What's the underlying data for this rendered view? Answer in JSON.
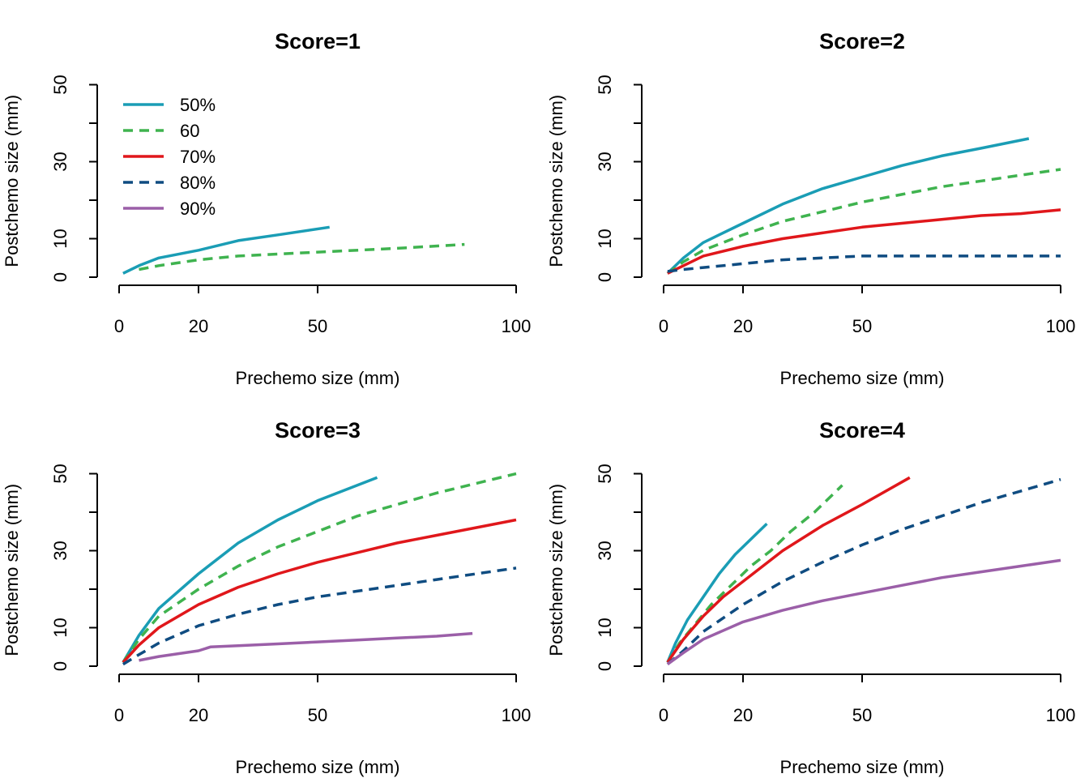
{
  "chart_data": [
    {
      "type": "line",
      "title": "Score=1",
      "xlabel": "Prechemo size (mm)",
      "ylabel": "Postchemo size (mm)",
      "xticks": [
        0,
        20,
        50,
        100
      ],
      "yticks": [
        0,
        10,
        30,
        50
      ],
      "ylim": [
        0,
        50
      ],
      "legend_position": "top-left",
      "series": [
        {
          "name": "50%",
          "color": "#1a9db5",
          "dash": "solid",
          "x": [
            1,
            5,
            10,
            20,
            30,
            40,
            53
          ],
          "y": [
            1,
            3,
            5,
            7,
            9.5,
            11,
            13
          ]
        },
        {
          "name": "60",
          "color": "#3fb34f",
          "dash": "dashed",
          "x": [
            5,
            10,
            20,
            30,
            50,
            70,
            87
          ],
          "y": [
            2,
            3,
            4.5,
            5.5,
            6.5,
            7.5,
            8.5
          ]
        }
      ],
      "legend": [
        {
          "label": "50%",
          "color": "#1a9db5",
          "dash": "solid"
        },
        {
          "label": "60",
          "color": "#3fb34f",
          "dash": "dashed"
        },
        {
          "label": "70%",
          "color": "#e0171b",
          "dash": "solid"
        },
        {
          "label": "80%",
          "color": "#0f4c81",
          "dash": "dashed"
        },
        {
          "label": "90%",
          "color": "#9b5fa8",
          "dash": "solid"
        }
      ]
    },
    {
      "type": "line",
      "title": "Score=2",
      "xlabel": "Prechemo size (mm)",
      "ylabel": "Postchemo size (mm)",
      "xticks": [
        0,
        20,
        50,
        100
      ],
      "yticks": [
        0,
        10,
        30,
        50
      ],
      "ylim": [
        0,
        50
      ],
      "series": [
        {
          "name": "50%",
          "color": "#1a9db5",
          "dash": "solid",
          "x": [
            1,
            5,
            10,
            20,
            30,
            40,
            50,
            60,
            70,
            80,
            92
          ],
          "y": [
            1,
            5,
            9,
            14,
            19,
            23,
            26,
            29,
            31.5,
            33.5,
            36
          ]
        },
        {
          "name": "60",
          "color": "#3fb34f",
          "dash": "dashed",
          "x": [
            1,
            5,
            10,
            20,
            30,
            40,
            50,
            60,
            70,
            80,
            90,
            100
          ],
          "y": [
            1,
            4,
            7,
            11,
            14.5,
            17,
            19.5,
            21.5,
            23.5,
            25,
            26.5,
            28
          ]
        },
        {
          "name": "70%",
          "color": "#e0171b",
          "dash": "solid",
          "x": [
            1,
            5,
            10,
            20,
            30,
            40,
            50,
            60,
            70,
            80,
            90,
            100
          ],
          "y": [
            1,
            3,
            5.5,
            8,
            10,
            11.5,
            13,
            14,
            15,
            16,
            16.5,
            17.5
          ]
        },
        {
          "name": "80%",
          "color": "#0f4c81",
          "dash": "dashed",
          "x": [
            1,
            5,
            10,
            20,
            30,
            40,
            50,
            60,
            70,
            80,
            90,
            100
          ],
          "y": [
            1.5,
            2,
            2.5,
            3.5,
            4.5,
            5,
            5.5,
            5.5,
            5.5,
            5.5,
            5.5,
            5.5
          ]
        }
      ]
    },
    {
      "type": "line",
      "title": "Score=3",
      "xlabel": "Prechemo size (mm)",
      "ylabel": "Postchemo size (mm)",
      "xticks": [
        0,
        20,
        50,
        100
      ],
      "yticks": [
        0,
        10,
        30,
        50
      ],
      "ylim": [
        0,
        50
      ],
      "series": [
        {
          "name": "50%",
          "color": "#1a9db5",
          "dash": "solid",
          "x": [
            1,
            5,
            10,
            20,
            30,
            40,
            50,
            60,
            65
          ],
          "y": [
            1,
            8,
            15,
            24,
            32,
            38,
            43,
            47,
            49
          ]
        },
        {
          "name": "60",
          "color": "#3fb34f",
          "dash": "dashed",
          "x": [
            1,
            5,
            10,
            20,
            30,
            40,
            50,
            60,
            70,
            80,
            90,
            100
          ],
          "y": [
            1,
            7,
            13,
            20,
            26,
            31,
            35,
            39,
            42,
            45,
            47.5,
            50
          ]
        },
        {
          "name": "70%",
          "color": "#e0171b",
          "dash": "solid",
          "x": [
            1,
            5,
            10,
            20,
            30,
            40,
            50,
            60,
            70,
            80,
            90,
            100
          ],
          "y": [
            1,
            5.5,
            10,
            16,
            20.5,
            24,
            27,
            29.5,
            32,
            34,
            36,
            38
          ]
        },
        {
          "name": "80%",
          "color": "#0f4c81",
          "dash": "dashed",
          "x": [
            1,
            5,
            10,
            20,
            30,
            40,
            50,
            60,
            70,
            80,
            90,
            100
          ],
          "y": [
            0.5,
            3,
            6,
            10.5,
            13.5,
            16,
            18,
            19.5,
            21,
            22.5,
            24,
            25.5
          ]
        },
        {
          "name": "90%",
          "color": "#9b5fa8",
          "dash": "solid",
          "x": [
            5,
            10,
            20,
            23,
            30,
            40,
            50,
            60,
            70,
            80,
            89
          ],
          "y": [
            1.5,
            2.5,
            4,
            5,
            5.3,
            5.8,
            6.3,
            6.8,
            7.3,
            7.8,
            8.5
          ]
        }
      ]
    },
    {
      "type": "line",
      "title": "Score=4",
      "xlabel": "Prechemo size (mm)",
      "ylabel": "Postchemo size (mm)",
      "xticks": [
        0,
        20,
        50,
        100
      ],
      "yticks": [
        0,
        10,
        30,
        50
      ],
      "ylim": [
        0,
        50
      ],
      "series": [
        {
          "name": "50%",
          "color": "#1a9db5",
          "dash": "solid",
          "x": [
            1,
            3,
            6,
            10,
            14,
            18,
            22,
            26
          ],
          "y": [
            1,
            6,
            12,
            18,
            24,
            29,
            33,
            37
          ]
        },
        {
          "name": "60",
          "color": "#3fb34f",
          "dash": "dashed",
          "x": [
            1,
            4,
            8,
            12,
            17,
            22,
            27,
            32,
            38,
            45
          ],
          "y": [
            1,
            6,
            11,
            16,
            21,
            26,
            30,
            35,
            40,
            47
          ]
        },
        {
          "name": "70%",
          "color": "#e0171b",
          "dash": "solid",
          "x": [
            1,
            5,
            10,
            15,
            20,
            30,
            40,
            50,
            62
          ],
          "y": [
            1,
            7,
            13,
            18,
            22,
            30,
            36.5,
            42,
            49
          ]
        },
        {
          "name": "80%",
          "color": "#0f4c81",
          "dash": "dashed",
          "x": [
            1,
            5,
            10,
            20,
            30,
            40,
            50,
            60,
            70,
            80,
            90,
            100
          ],
          "y": [
            0.5,
            4,
            9,
            16,
            22,
            27,
            31.5,
            35.5,
            39,
            42.5,
            45.5,
            48.5
          ]
        },
        {
          "name": "90%",
          "color": "#9b5fa8",
          "dash": "solid",
          "x": [
            1,
            5,
            10,
            20,
            30,
            40,
            50,
            60,
            70,
            80,
            90,
            100
          ],
          "y": [
            0.5,
            3.5,
            7,
            11.5,
            14.5,
            17,
            19,
            21,
            23,
            24.5,
            26,
            27.5
          ]
        }
      ]
    }
  ]
}
